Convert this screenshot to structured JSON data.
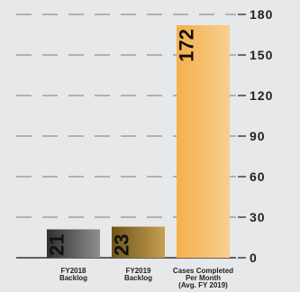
{
  "chart_data": {
    "type": "bar",
    "categories": [
      [
        "FY2018",
        "Backlog"
      ],
      [
        "FY2019",
        "Backlog"
      ],
      [
        "Cases Completed",
        "Per Month",
        "(Avg. FY 2019)"
      ]
    ],
    "values": [
      21,
      23,
      172
    ],
    "value_labels": [
      "21",
      "23",
      "172"
    ],
    "ylim": [
      0,
      180
    ],
    "yticks": [
      0,
      30,
      60,
      90,
      120,
      150,
      180
    ],
    "ytick_labels": [
      "0",
      "30",
      "60",
      "90",
      "120",
      "150",
      "180"
    ],
    "axis_side": "right",
    "grid": true,
    "grid_style": "dashed",
    "value_label_orientation": "vertical",
    "colors": {
      "background": "#e7e8e9",
      "grid": "#7a7a7a",
      "bars": [
        [
          "#2f2f2f",
          "#8f8f8f"
        ],
        [
          "#6e5418",
          "#c69f52"
        ],
        [
          "#f5b04a",
          "#f8cf90"
        ]
      ]
    }
  }
}
